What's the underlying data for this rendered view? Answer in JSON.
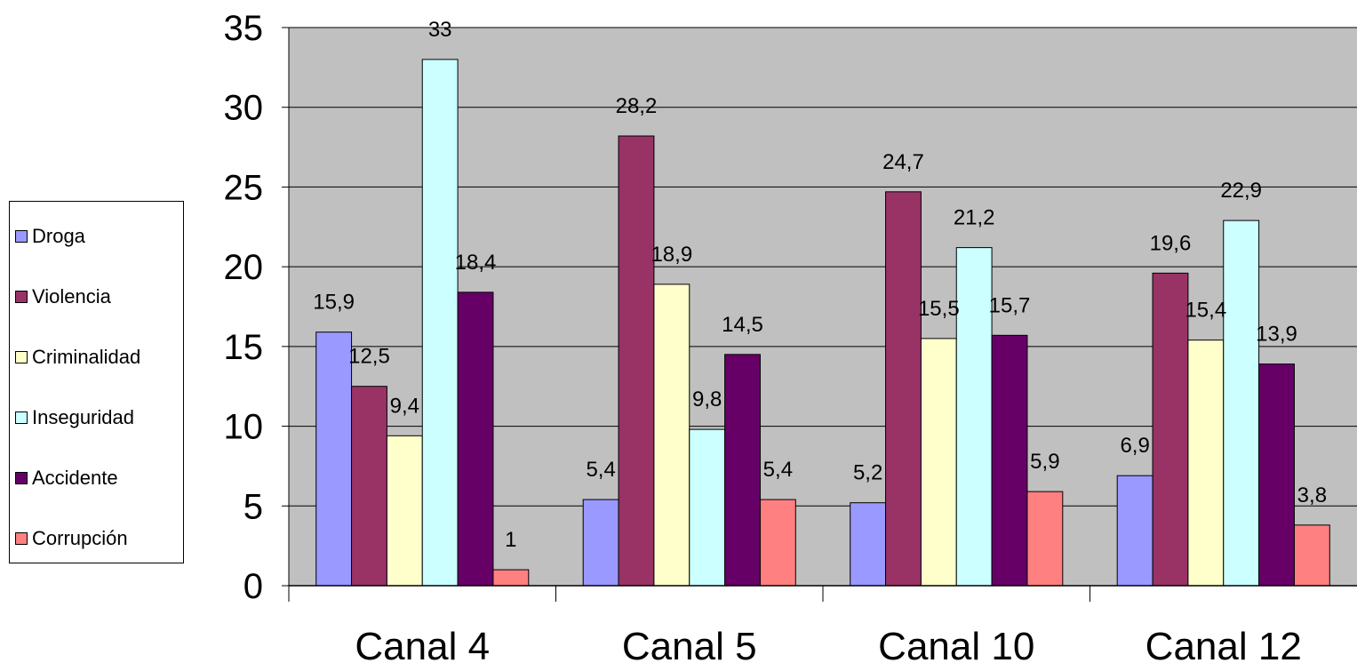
{
  "chart_data": {
    "type": "bar",
    "categories": [
      "Canal 4",
      "Canal 5",
      "Canal 10",
      "Canal 12"
    ],
    "series": [
      {
        "name": "Droga",
        "color": "#9999ff",
        "values": [
          15.9,
          5.4,
          5.2,
          6.9
        ],
        "labels": [
          "15,9",
          "5,4",
          "5,2",
          "6,9"
        ]
      },
      {
        "name": "Violencia",
        "color": "#993366",
        "values": [
          12.5,
          28.2,
          24.7,
          19.6
        ],
        "labels": [
          "12,5",
          "28,2",
          "24,7",
          "19,6"
        ]
      },
      {
        "name": "Criminalidad",
        "color": "#ffffcc",
        "values": [
          9.4,
          18.9,
          15.5,
          15.4
        ],
        "labels": [
          "9,4",
          "18,9",
          "15,5",
          "15,4"
        ]
      },
      {
        "name": "Inseguridad",
        "color": "#ccffff",
        "values": [
          33,
          9.8,
          21.2,
          22.9
        ],
        "labels": [
          "33",
          "9,8",
          "21,2",
          "22,9"
        ]
      },
      {
        "name": "Accidente",
        "color": "#660066",
        "values": [
          18.4,
          14.5,
          15.7,
          13.9
        ],
        "labels": [
          "18,4",
          "14,5",
          "15,7",
          "13,9"
        ]
      },
      {
        "name": "Corrupción",
        "color": "#ff8080",
        "values": [
          1,
          5.4,
          5.9,
          3.8
        ],
        "labels": [
          "1",
          "5,4",
          "5,9",
          "3,8"
        ]
      }
    ],
    "yticks": [
      "0",
      "5",
      "10",
      "15",
      "20",
      "25",
      "30",
      "35"
    ],
    "ylim": [
      0,
      35
    ],
    "grid": true,
    "plot_background": "#c0c0c0",
    "legend_position": "left"
  }
}
